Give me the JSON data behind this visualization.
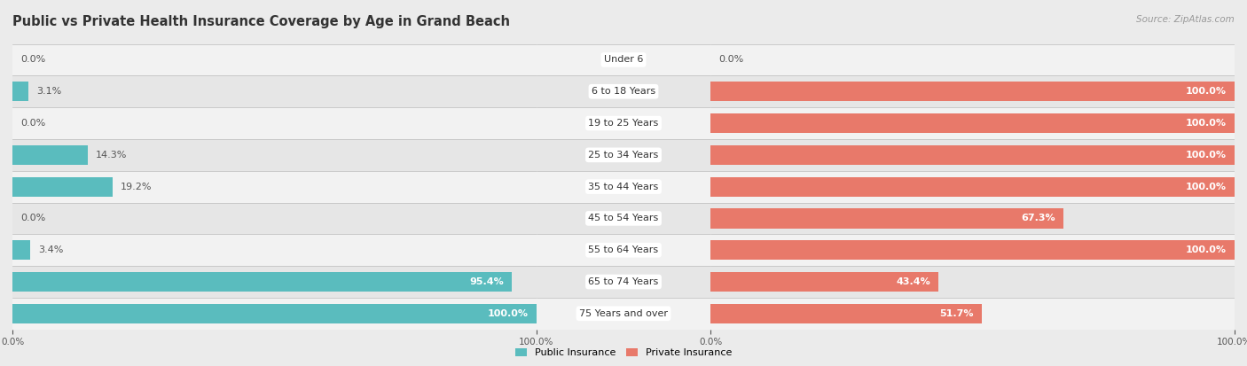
{
  "title": "Public vs Private Health Insurance Coverage by Age in Grand Beach",
  "source": "Source: ZipAtlas.com",
  "categories": [
    "Under 6",
    "6 to 18 Years",
    "19 to 25 Years",
    "25 to 34 Years",
    "35 to 44 Years",
    "45 to 54 Years",
    "55 to 64 Years",
    "65 to 74 Years",
    "75 Years and over"
  ],
  "public_values": [
    0.0,
    3.1,
    0.0,
    14.3,
    19.2,
    0.0,
    3.4,
    95.4,
    100.0
  ],
  "private_values": [
    0.0,
    100.0,
    100.0,
    100.0,
    100.0,
    67.3,
    100.0,
    43.4,
    51.7
  ],
  "public_color": "#5abcbe",
  "private_color": "#e8796a",
  "bg_color": "#ebebeb",
  "row_colors": [
    "#f2f2f2",
    "#e6e6e6"
  ],
  "title_fontsize": 10.5,
  "label_fontsize": 8,
  "tick_fontsize": 7.5,
  "legend_fontsize": 8,
  "bar_height": 0.62,
  "max_val": 100
}
